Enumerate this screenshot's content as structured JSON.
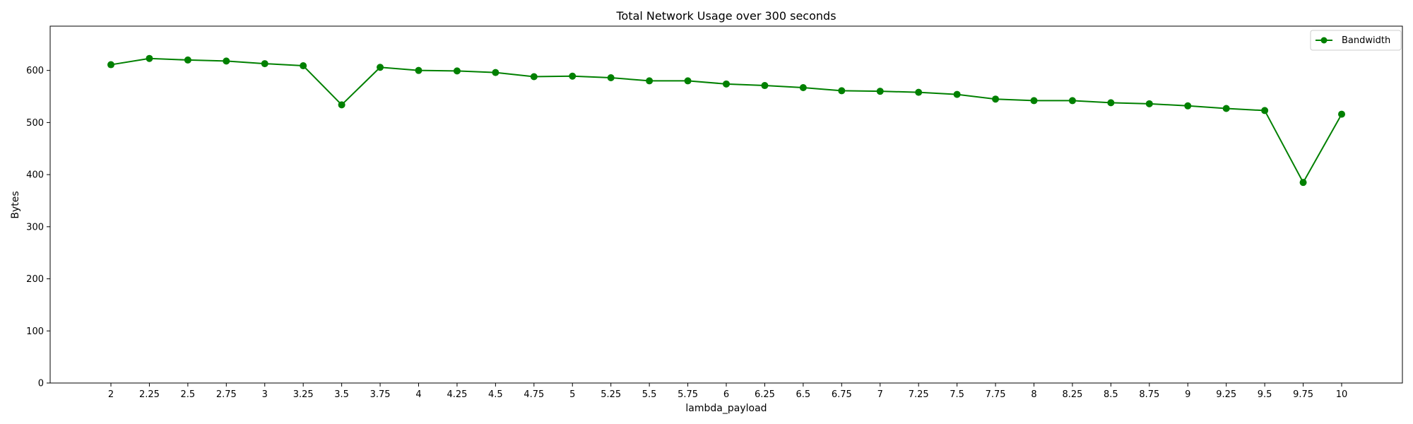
{
  "chart_data": {
    "type": "line",
    "title": "Total Network Usage over 300 seconds",
    "xlabel": "lambda_payload",
    "ylabel": "Bytes",
    "ylim": [
      0,
      685
    ],
    "yticks": [
      0,
      100,
      200,
      300,
      400,
      500,
      600
    ],
    "x": [
      "2",
      "2.25",
      "2.5",
      "2.75",
      "3",
      "3.25",
      "3.5",
      "3.75",
      "4",
      "4.25",
      "4.5",
      "4.75",
      "5",
      "5.25",
      "5.5",
      "5.75",
      "6",
      "6.25",
      "6.5",
      "6.75",
      "7",
      "7.25",
      "7.5",
      "7.75",
      "8",
      "8.25",
      "8.5",
      "8.75",
      "9",
      "9.25",
      "9.5",
      "9.75",
      "10"
    ],
    "series": [
      {
        "name": "Bandwidth",
        "color": "#008000",
        "marker": "circle",
        "values": [
          611,
          623,
          620,
          618,
          613,
          609,
          534,
          606,
          600,
          599,
          596,
          588,
          589,
          586,
          580,
          580,
          574,
          571,
          567,
          561,
          560,
          558,
          554,
          545,
          542,
          542,
          538,
          536,
          532,
          527,
          523,
          385,
          516
        ]
      }
    ],
    "grid": false,
    "legend_position": "top-right"
  }
}
